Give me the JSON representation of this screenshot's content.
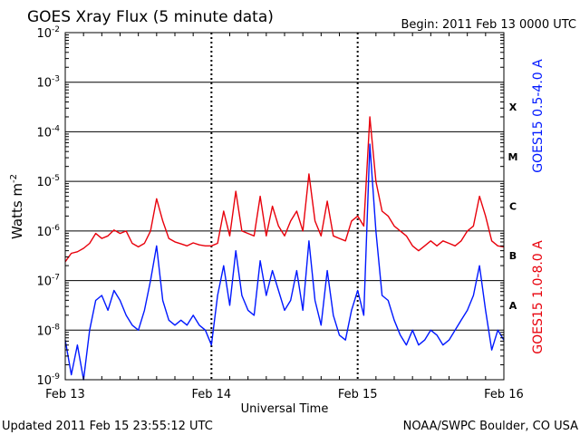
{
  "header": {
    "title": "GOES Xray Flux (5 minute data)",
    "begin": "Begin:  2011 Feb 13 0000 UTC"
  },
  "footer": {
    "updated": "Updated 2011 Feb 15 23:55:12 UTC",
    "credit": "NOAA/SWPC Boulder, CO USA"
  },
  "chart_data": {
    "type": "line",
    "title": "GOES Xray Flux (5 minute data)",
    "xlabel": "Universal Time",
    "ylabel": "Watts m",
    "ylabel_superscript": "-2",
    "yscale": "log",
    "ylim": [
      1e-09,
      0.01
    ],
    "ytick_exponents": [
      -9,
      -8,
      -7,
      -6,
      -5,
      -4,
      -3,
      -2
    ],
    "xlim_hours": [
      0,
      72
    ],
    "xticks": [
      {
        "hour": 0,
        "label": "Feb 13"
      },
      {
        "hour": 24,
        "label": "Feb 14"
      },
      {
        "hour": 48,
        "label": "Feb 15"
      },
      {
        "hour": 72,
        "label": "Feb 16"
      }
    ],
    "flare_classes": [
      {
        "label": "A",
        "exponent": -7.5
      },
      {
        "label": "B",
        "exponent": -6.5
      },
      {
        "label": "C",
        "exponent": -5.5
      },
      {
        "label": "M",
        "exponent": -4.5
      },
      {
        "label": "X",
        "exponent": -3.5
      }
    ],
    "grid": "major decades",
    "series": [
      {
        "name": "GOES15 1.0-8.0 A",
        "color": "#e8000b",
        "points": [
          [
            0,
            -6.62
          ],
          [
            1,
            -6.45
          ],
          [
            2,
            -6.42
          ],
          [
            3,
            -6.35
          ],
          [
            4,
            -6.25
          ],
          [
            5,
            -6.05
          ],
          [
            6,
            -6.15
          ],
          [
            7,
            -6.1
          ],
          [
            8,
            -5.98
          ],
          [
            9,
            -6.05
          ],
          [
            10,
            -6.0
          ],
          [
            11,
            -6.25
          ],
          [
            12,
            -6.32
          ],
          [
            13,
            -6.25
          ],
          [
            14,
            -6.0
          ],
          [
            15,
            -5.35
          ],
          [
            16,
            -5.8
          ],
          [
            17,
            -6.15
          ],
          [
            18,
            -6.22
          ],
          [
            19,
            -6.26
          ],
          [
            20,
            -6.3
          ],
          [
            21,
            -6.24
          ],
          [
            22,
            -6.28
          ],
          [
            23,
            -6.3
          ],
          [
            24,
            -6.3
          ],
          [
            25,
            -6.25
          ],
          [
            26,
            -5.6
          ],
          [
            27,
            -6.1
          ],
          [
            28,
            -5.2
          ],
          [
            29,
            -6.0
          ],
          [
            30,
            -6.05
          ],
          [
            31,
            -6.1
          ],
          [
            32,
            -5.3
          ],
          [
            33,
            -6.1
          ],
          [
            34,
            -5.5
          ],
          [
            35,
            -5.9
          ],
          [
            36,
            -6.1
          ],
          [
            37,
            -5.8
          ],
          [
            38,
            -5.6
          ],
          [
            39,
            -6.0
          ],
          [
            40,
            -4.85
          ],
          [
            41,
            -5.8
          ],
          [
            42,
            -6.1
          ],
          [
            43,
            -5.4
          ],
          [
            44,
            -6.1
          ],
          [
            45,
            -6.15
          ],
          [
            46,
            -6.2
          ],
          [
            47,
            -5.8
          ],
          [
            48,
            -5.7
          ],
          [
            49,
            -5.9
          ],
          [
            50,
            -3.7
          ],
          [
            51,
            -5.0
          ],
          [
            52,
            -5.6
          ],
          [
            53,
            -5.7
          ],
          [
            54,
            -5.9
          ],
          [
            55,
            -6.0
          ],
          [
            56,
            -6.1
          ],
          [
            57,
            -6.3
          ],
          [
            58,
            -6.4
          ],
          [
            59,
            -6.3
          ],
          [
            60,
            -6.2
          ],
          [
            61,
            -6.3
          ],
          [
            62,
            -6.2
          ],
          [
            63,
            -6.25
          ],
          [
            64,
            -6.3
          ],
          [
            65,
            -6.2
          ],
          [
            66,
            -6.0
          ],
          [
            67,
            -5.9
          ],
          [
            68,
            -5.3
          ],
          [
            69,
            -5.7
          ],
          [
            70,
            -6.2
          ],
          [
            71,
            -6.3
          ],
          [
            72,
            -6.32
          ]
        ]
      },
      {
        "name": "GOES15 0.5-4.0 A",
        "color": "#0018ff",
        "points": [
          [
            0,
            -8.2
          ],
          [
            1,
            -8.9
          ],
          [
            2,
            -8.3
          ],
          [
            3,
            -9.0
          ],
          [
            4,
            -8.0
          ],
          [
            5,
            -7.4
          ],
          [
            6,
            -7.3
          ],
          [
            7,
            -7.6
          ],
          [
            8,
            -7.2
          ],
          [
            9,
            -7.4
          ],
          [
            10,
            -7.7
          ],
          [
            11,
            -7.9
          ],
          [
            12,
            -8.0
          ],
          [
            13,
            -7.6
          ],
          [
            14,
            -7.0
          ],
          [
            15,
            -6.3
          ],
          [
            16,
            -7.4
          ],
          [
            17,
            -7.8
          ],
          [
            18,
            -7.9
          ],
          [
            19,
            -7.8
          ],
          [
            20,
            -7.9
          ],
          [
            21,
            -7.7
          ],
          [
            22,
            -7.9
          ],
          [
            23,
            -8.0
          ],
          [
            24,
            -8.3
          ],
          [
            25,
            -7.3
          ],
          [
            26,
            -6.7
          ],
          [
            27,
            -7.5
          ],
          [
            28,
            -6.4
          ],
          [
            29,
            -7.3
          ],
          [
            30,
            -7.6
          ],
          [
            31,
            -7.7
          ],
          [
            32,
            -6.6
          ],
          [
            33,
            -7.3
          ],
          [
            34,
            -6.8
          ],
          [
            35,
            -7.2
          ],
          [
            36,
            -7.6
          ],
          [
            37,
            -7.4
          ],
          [
            38,
            -6.8
          ],
          [
            39,
            -7.6
          ],
          [
            40,
            -6.2
          ],
          [
            41,
            -7.4
          ],
          [
            42,
            -7.9
          ],
          [
            43,
            -6.8
          ],
          [
            44,
            -7.7
          ],
          [
            45,
            -8.1
          ],
          [
            46,
            -8.2
          ],
          [
            47,
            -7.6
          ],
          [
            48,
            -7.2
          ],
          [
            49,
            -7.7
          ],
          [
            50,
            -4.25
          ],
          [
            51,
            -6.0
          ],
          [
            52,
            -7.3
          ],
          [
            53,
            -7.4
          ],
          [
            54,
            -7.8
          ],
          [
            55,
            -8.1
          ],
          [
            56,
            -8.3
          ],
          [
            57,
            -8.0
          ],
          [
            58,
            -8.3
          ],
          [
            59,
            -8.2
          ],
          [
            60,
            -8.0
          ],
          [
            61,
            -8.1
          ],
          [
            62,
            -8.3
          ],
          [
            63,
            -8.2
          ],
          [
            64,
            -8.0
          ],
          [
            65,
            -7.8
          ],
          [
            66,
            -7.6
          ],
          [
            67,
            -7.3
          ],
          [
            68,
            -6.7
          ],
          [
            69,
            -7.6
          ],
          [
            70,
            -8.4
          ],
          [
            71,
            -8.0
          ],
          [
            72,
            -8.2
          ]
        ]
      }
    ]
  }
}
